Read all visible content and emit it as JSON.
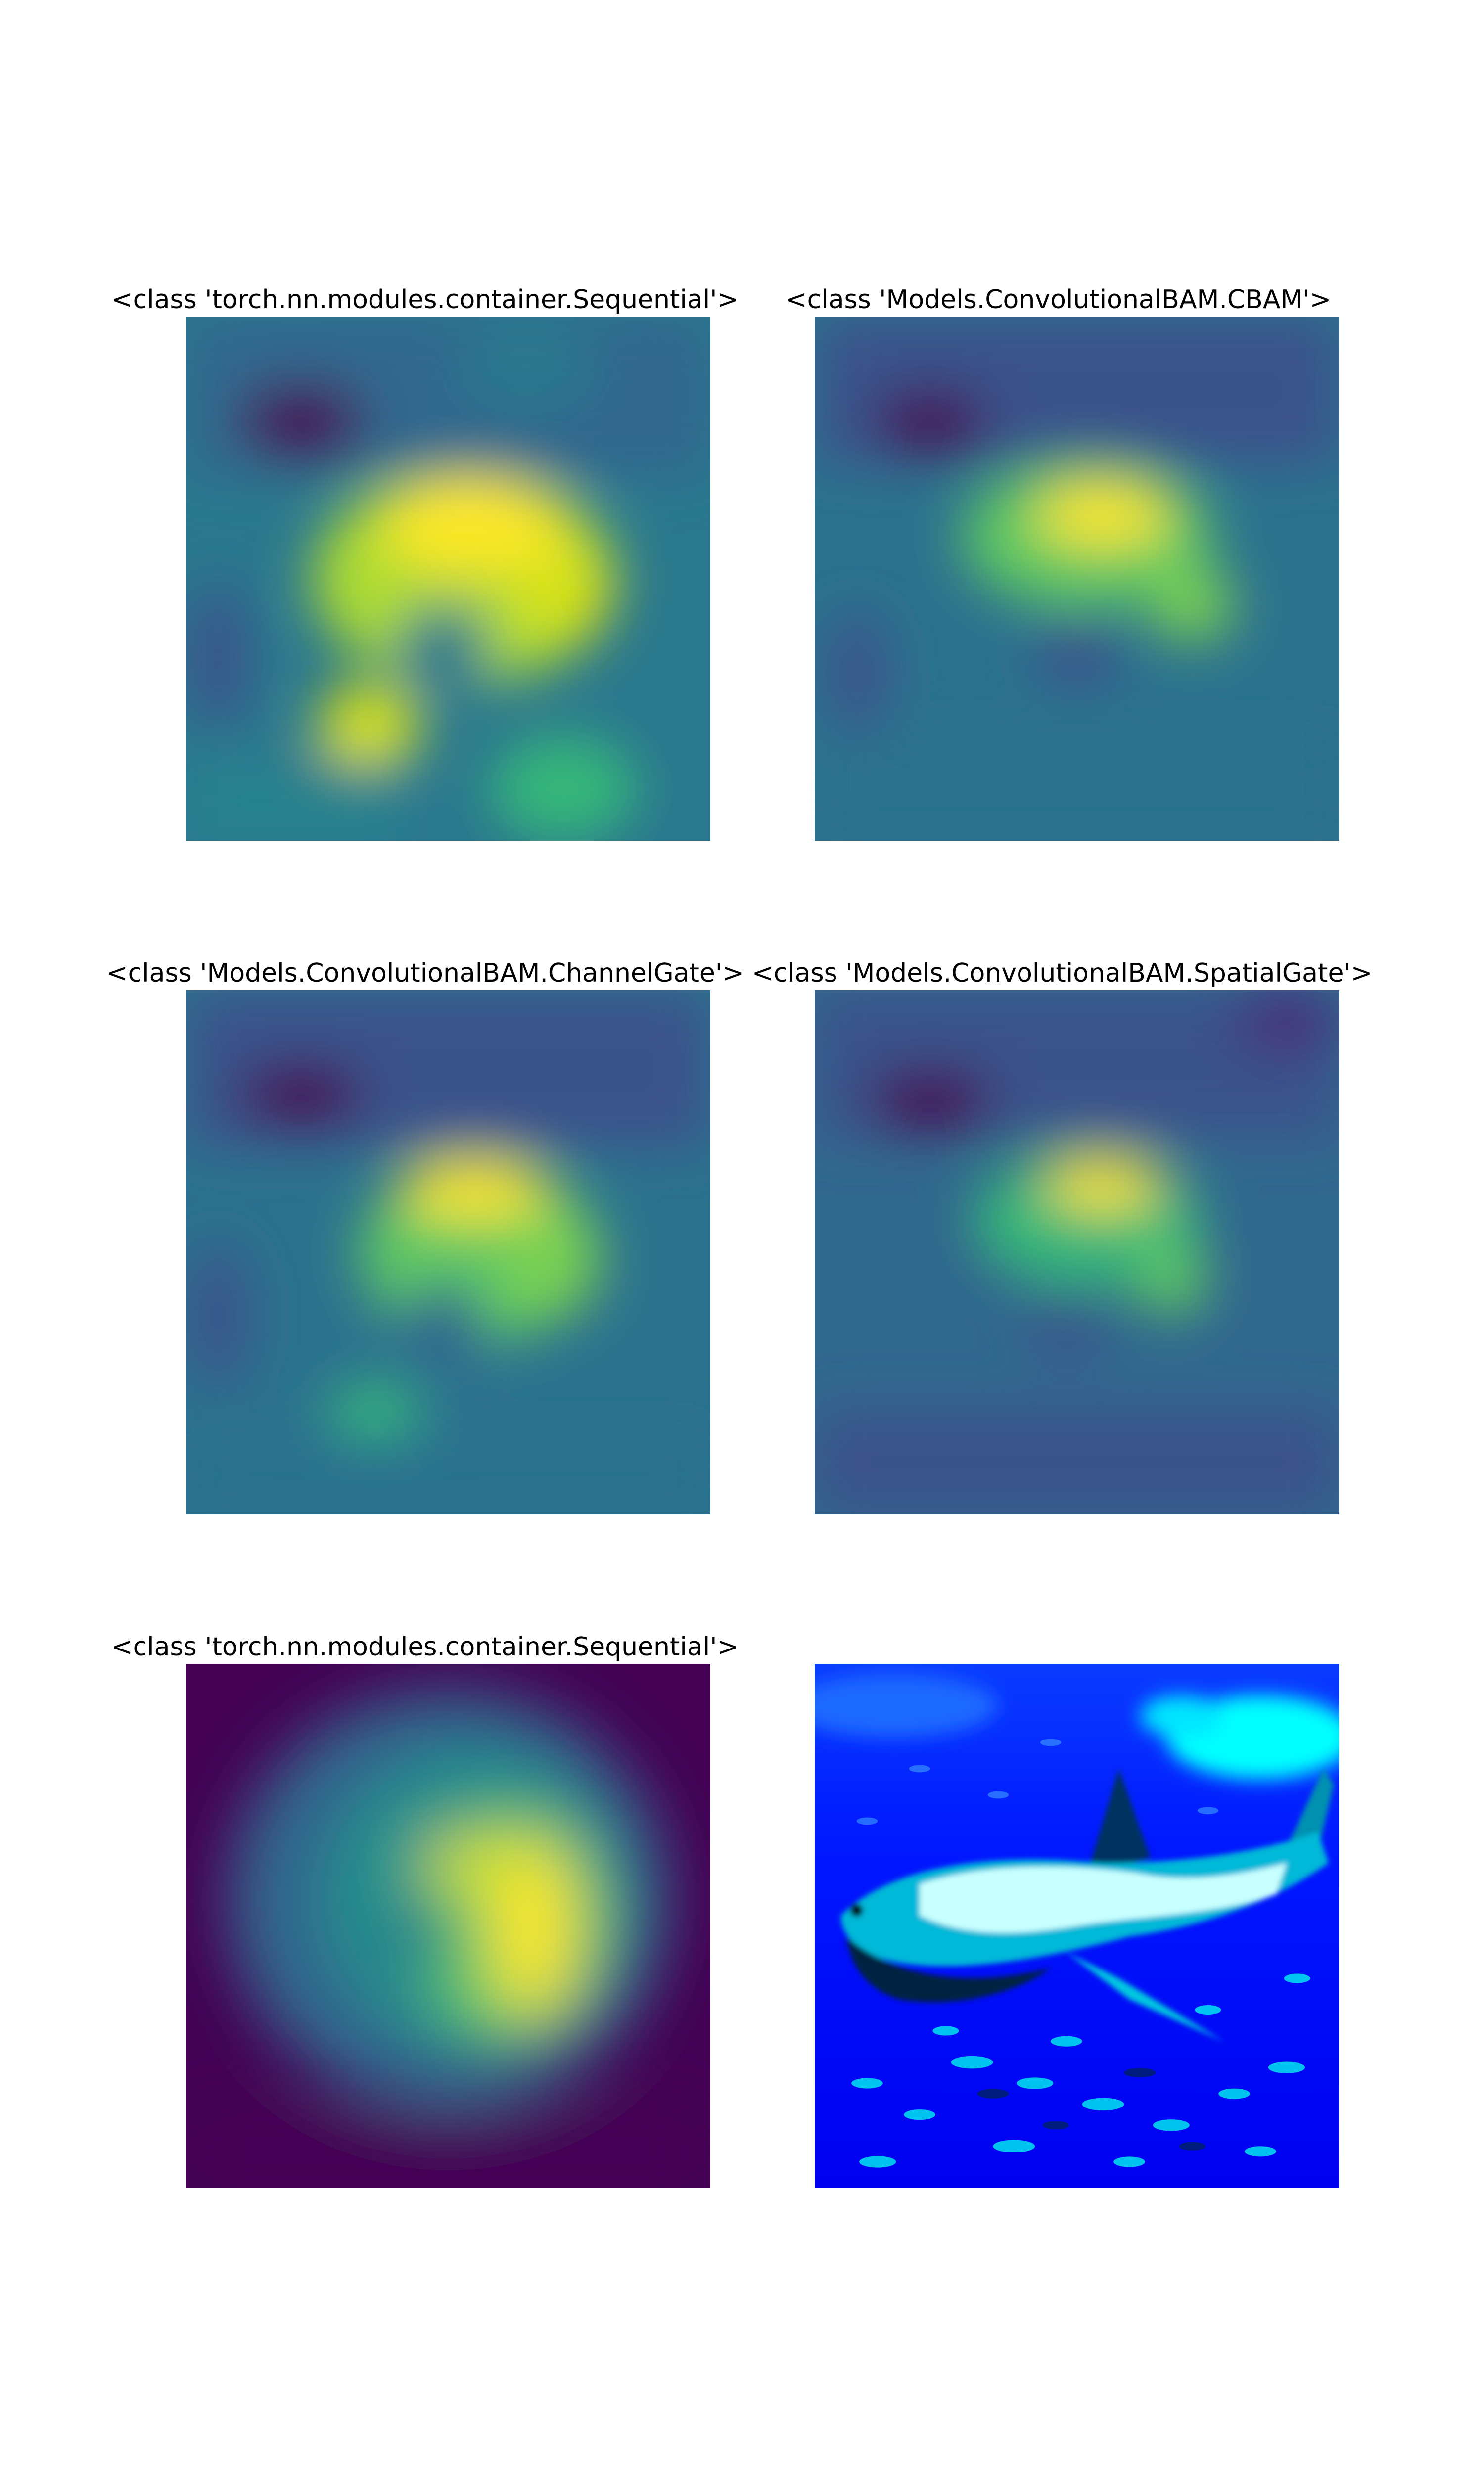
{
  "chart_data": [
    {
      "type": "heatmap",
      "title": "<class 'torch.nn.modules.container.Sequential'>",
      "colormap": "viridis",
      "axes": "off"
    },
    {
      "type": "heatmap",
      "title": "<class 'Models.ConvolutionalBAM.CBAM'>",
      "colormap": "viridis",
      "axes": "off"
    },
    {
      "type": "heatmap",
      "title": "<class 'Models.ConvolutionalBAM.ChannelGate'>",
      "colormap": "viridis",
      "axes": "off"
    },
    {
      "type": "heatmap",
      "title": "<class 'Models.ConvolutionalBAM.SpatialGate'>",
      "colormap": "viridis",
      "axes": "off"
    },
    {
      "type": "heatmap",
      "title": "<class 'torch.nn.modules.container.Sequential'>",
      "colormap": "viridis",
      "axes": "off"
    },
    {
      "type": "image",
      "title": "",
      "axes": "off"
    }
  ],
  "colors": {
    "viridis_low": "#440154",
    "viridis_mid": "#21918c",
    "viridis_high": "#fde725",
    "water": "#0010ff",
    "water_light": "#00e5ff"
  }
}
